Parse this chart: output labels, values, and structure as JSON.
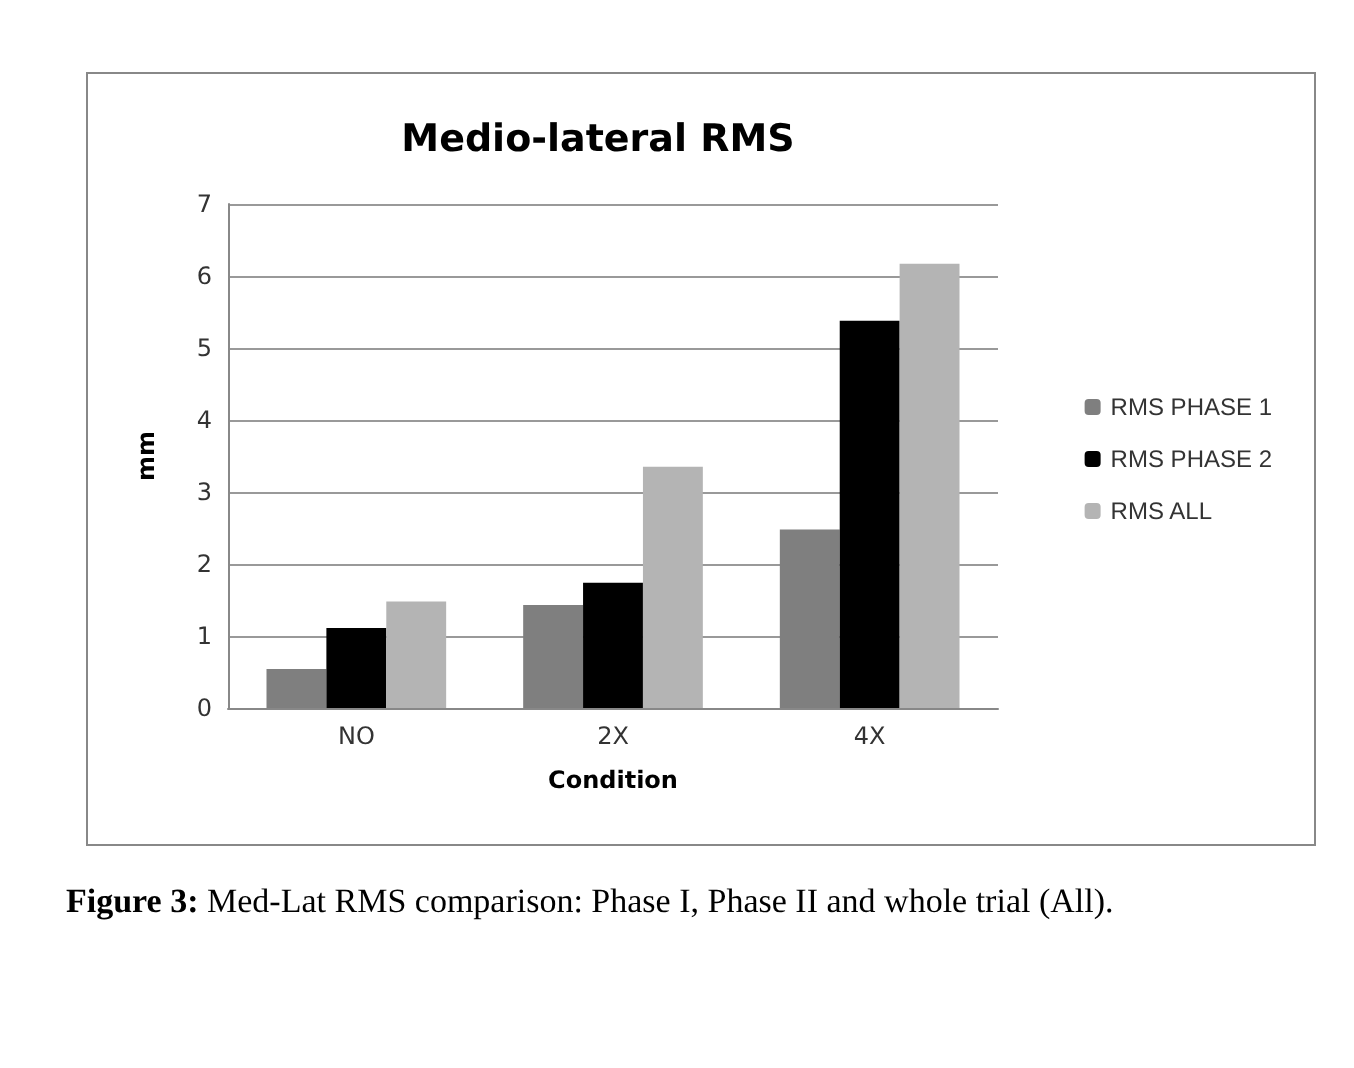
{
  "chart_data": {
    "type": "bar",
    "title": "Medio-lateral RMS",
    "xlabel": "Condition",
    "ylabel": "mm",
    "categories": [
      "NO",
      "2X",
      "4X"
    ],
    "series": [
      {
        "name": "RMS PHASE 1",
        "color": "#7f7f7f",
        "values": [
          0.54,
          1.43,
          2.48
        ]
      },
      {
        "name": "RMS PHASE 2",
        "color": "#000000",
        "values": [
          1.11,
          1.74,
          5.38
        ]
      },
      {
        "name": "RMS ALL",
        "color": "#b4b4b4",
        "values": [
          1.48,
          3.35,
          6.17
        ]
      }
    ],
    "ylim": [
      0,
      7
    ],
    "yticks": [
      0,
      1,
      2,
      3,
      4,
      5,
      6,
      7
    ],
    "grid": "y",
    "legend": "right",
    "annotations": [
      "Figure 3: Med-Lat RMS comparison: Phase I, Phase II and whole trial (All)."
    ]
  }
}
